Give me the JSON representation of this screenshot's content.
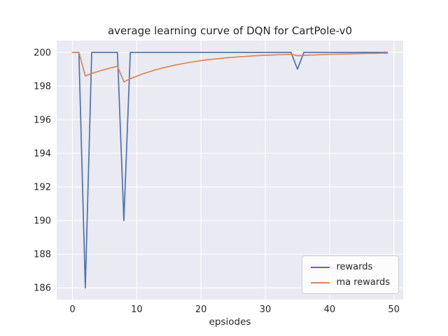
{
  "chart_data": {
    "type": "line",
    "title": "average learning curve of DQN for CartPole-v0",
    "xlabel": "epsiodes",
    "ylabel": "",
    "x": [
      0,
      1,
      2,
      3,
      4,
      5,
      6,
      7,
      8,
      9,
      10,
      11,
      12,
      13,
      14,
      15,
      16,
      17,
      18,
      19,
      20,
      21,
      22,
      23,
      24,
      25,
      26,
      27,
      28,
      29,
      30,
      31,
      32,
      33,
      34,
      35,
      36,
      37,
      38,
      39,
      40,
      41,
      42,
      43,
      44,
      45,
      46,
      47,
      48,
      49
    ],
    "series": [
      {
        "name": "rewards",
        "color": "#4c72b0",
        "values": [
          200,
          200,
          186,
          200,
          200,
          200,
          200,
          200,
          190,
          200,
          200,
          200,
          200,
          200,
          200,
          200,
          200,
          200,
          200,
          200,
          200,
          200,
          200,
          200,
          200,
          200,
          200,
          200,
          200,
          200,
          200,
          200,
          200,
          200,
          200,
          199,
          200,
          200,
          200,
          200,
          200,
          200,
          200,
          200,
          200,
          200,
          200,
          200,
          200,
          200
        ]
      },
      {
        "name": "ma rewards",
        "color": "#dd8452",
        "values": [
          200,
          200,
          198.6,
          198.74,
          198.87,
          198.98,
          199.08,
          199.17,
          198.25,
          198.43,
          198.58,
          198.73,
          198.85,
          198.97,
          199.07,
          199.16,
          199.25,
          199.32,
          199.39,
          199.45,
          199.51,
          199.56,
          199.6,
          199.64,
          199.68,
          199.71,
          199.74,
          199.76,
          199.79,
          199.81,
          199.83,
          199.84,
          199.86,
          199.87,
          199.89,
          199.8,
          199.82,
          199.84,
          199.85,
          199.87,
          199.88,
          199.89,
          199.9,
          199.91,
          199.92,
          199.93,
          199.94,
          199.94,
          199.95,
          199.95
        ]
      }
    ],
    "xticks": [
      0,
      10,
      20,
      30,
      40,
      50
    ],
    "yticks": [
      186,
      188,
      190,
      192,
      194,
      196,
      198,
      200
    ],
    "xlim": [
      -2.45,
      51.45
    ],
    "ylim": [
      185.3,
      200.7
    ],
    "grid": true,
    "legend_position": "lower right",
    "colors": {
      "axes_background": "#eaeaf2",
      "grid": "#ffffff",
      "figure_background": "#ffffff",
      "text": "#262626",
      "legend_border": "#cccccc"
    }
  }
}
